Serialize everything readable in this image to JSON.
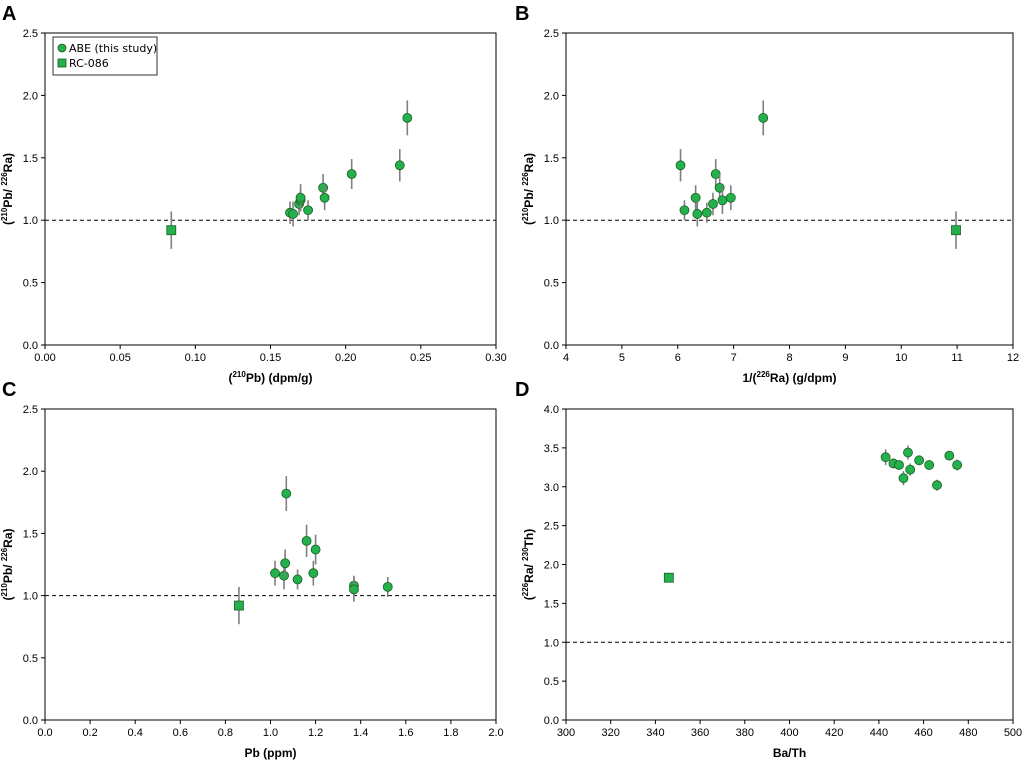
{
  "figure": {
    "legend": {
      "abe_label": "ABE (this study)",
      "rc_label": "RC-086"
    },
    "colors": {
      "marker_fill": "#22b14c",
      "marker_stroke": "#1b5e20",
      "error_bar": "#808080"
    }
  },
  "chart_data": [
    {
      "panel": "A",
      "type": "scatter",
      "xlabel": {
        "pre": "(",
        "sup": "210",
        "post": "Pb) (dpm/g)"
      },
      "ylabel": {
        "pre": "(",
        "sup1": "210",
        "mid": "Pb/ ",
        "sup2": "226",
        "post": "Ra)"
      },
      "xlim": [
        0,
        0.3
      ],
      "ylim": [
        0,
        2.5
      ],
      "xticks": [
        "0.00",
        "0.05",
        "0.10",
        "0.15",
        "0.20",
        "0.25",
        "0.30"
      ],
      "yticks": [
        "0.0",
        "0.5",
        "1.0",
        "1.5",
        "2.0",
        "2.5"
      ],
      "ref_y": 1.0,
      "legend": true,
      "series": [
        {
          "name": "ABE (this study)",
          "marker": "circle",
          "points": [
            {
              "x": 0.163,
              "y": 1.06,
              "err": 0.09
            },
            {
              "x": 0.165,
              "y": 1.05,
              "err": 0.1
            },
            {
              "x": 0.169,
              "y": 1.13,
              "err": 0.09
            },
            {
              "x": 0.17,
              "y": 1.16,
              "err": 0.08
            },
            {
              "x": 0.17,
              "y": 1.18,
              "err": 0.11
            },
            {
              "x": 0.175,
              "y": 1.08,
              "err": 0.08
            },
            {
              "x": 0.185,
              "y": 1.26,
              "err": 0.11
            },
            {
              "x": 0.186,
              "y": 1.18,
              "err": 0.1
            },
            {
              "x": 0.204,
              "y": 1.37,
              "err": 0.12
            },
            {
              "x": 0.236,
              "y": 1.44,
              "err": 0.13
            },
            {
              "x": 0.241,
              "y": 1.82,
              "err": 0.14
            }
          ]
        },
        {
          "name": "RC-086",
          "marker": "square",
          "points": [
            {
              "x": 0.084,
              "y": 0.92,
              "err": 0.15
            }
          ]
        }
      ]
    },
    {
      "panel": "B",
      "type": "scatter",
      "xlabel": {
        "pre": "1/(",
        "sup": "226",
        "post": "Ra) (g/dpm)"
      },
      "ylabel": {
        "pre": "(",
        "sup1": "210",
        "mid": "Pb/ ",
        "sup2": "226",
        "post": "Ra)"
      },
      "xlim": [
        4,
        12
      ],
      "ylim": [
        0,
        2.5
      ],
      "xticks": [
        "4",
        "5",
        "6",
        "7",
        "8",
        "9",
        "10",
        "11",
        "12"
      ],
      "yticks": [
        "0.0",
        "0.5",
        "1.0",
        "1.5",
        "2.0",
        "2.5"
      ],
      "ref_y": 1.0,
      "legend": false,
      "series": [
        {
          "name": "ABE (this study)",
          "marker": "circle",
          "points": [
            {
              "x": 6.05,
              "y": 1.44,
              "err": 0.13
            },
            {
              "x": 6.12,
              "y": 1.08,
              "err": 0.08
            },
            {
              "x": 6.32,
              "y": 1.18,
              "err": 0.1
            },
            {
              "x": 6.35,
              "y": 1.05,
              "err": 0.1
            },
            {
              "x": 6.52,
              "y": 1.06,
              "err": 0.08
            },
            {
              "x": 6.63,
              "y": 1.13,
              "err": 0.09
            },
            {
              "x": 6.68,
              "y": 1.37,
              "err": 0.12
            },
            {
              "x": 6.75,
              "y": 1.26,
              "err": 0.11
            },
            {
              "x": 6.8,
              "y": 1.16,
              "err": 0.11
            },
            {
              "x": 6.95,
              "y": 1.18,
              "err": 0.1
            },
            {
              "x": 7.53,
              "y": 1.82,
              "err": 0.14
            }
          ]
        },
        {
          "name": "RC-086",
          "marker": "square",
          "points": [
            {
              "x": 10.98,
              "y": 0.92,
              "err": 0.15
            }
          ]
        }
      ]
    },
    {
      "panel": "C",
      "type": "scatter",
      "xlabel": {
        "pre": "Pb (ppm)",
        "sup": "",
        "post": ""
      },
      "ylabel": {
        "pre": "(",
        "sup1": "210",
        "mid": "Pb/ ",
        "sup2": "226",
        "post": "Ra)"
      },
      "xlim": [
        0,
        2
      ],
      "ylim": [
        0,
        2.5
      ],
      "xticks": [
        "0.0",
        "0.2",
        "0.4",
        "0.6",
        "0.8",
        "1.0",
        "1.2",
        "1.4",
        "1.6",
        "1.8",
        "2.0"
      ],
      "yticks": [
        "0.0",
        "0.5",
        "1.0",
        "1.5",
        "2.0",
        "2.5"
      ],
      "ref_y": 1.0,
      "legend": false,
      "series": [
        {
          "name": "ABE (this study)",
          "marker": "circle",
          "points": [
            {
              "x": 1.02,
              "y": 1.18,
              "err": 0.1
            },
            {
              "x": 1.06,
              "y": 1.16,
              "err": 0.11
            },
            {
              "x": 1.065,
              "y": 1.26,
              "err": 0.11
            },
            {
              "x": 1.07,
              "y": 1.82,
              "err": 0.14
            },
            {
              "x": 1.12,
              "y": 1.13,
              "err": 0.08
            },
            {
              "x": 1.16,
              "y": 1.44,
              "err": 0.13
            },
            {
              "x": 1.19,
              "y": 1.18,
              "err": 0.1
            },
            {
              "x": 1.2,
              "y": 1.37,
              "err": 0.12
            },
            {
              "x": 1.37,
              "y": 1.08,
              "err": 0.08
            },
            {
              "x": 1.37,
              "y": 1.05,
              "err": 0.1
            },
            {
              "x": 1.52,
              "y": 1.07,
              "err": 0.08
            }
          ]
        },
        {
          "name": "RC-086",
          "marker": "square",
          "points": [
            {
              "x": 0.86,
              "y": 0.92,
              "err": 0.15
            }
          ]
        }
      ]
    },
    {
      "panel": "D",
      "type": "scatter",
      "xlabel": {
        "pre": "Ba/Th",
        "sup": "",
        "post": ""
      },
      "ylabel": {
        "pre": "(",
        "sup1": "226",
        "mid": "Ra/ ",
        "sup2": "230",
        "post": "Th)"
      },
      "xlim": [
        300,
        500
      ],
      "ylim": [
        0,
        4
      ],
      "xticks": [
        "300",
        "320",
        "340",
        "360",
        "380",
        "400",
        "420",
        "440",
        "460",
        "480",
        "500"
      ],
      "yticks": [
        "0.0",
        "0.5",
        "1.0",
        "1.5",
        "2.0",
        "2.5",
        "3.0",
        "3.5",
        "4.0"
      ],
      "ref_y": 1.0,
      "legend": false,
      "series": [
        {
          "name": "ABE (this study)",
          "marker": "circle",
          "points": [
            {
              "x": 443,
              "y": 3.38,
              "err": 0.1
            },
            {
              "x": 446.5,
              "y": 3.3,
              "err": 0.06
            },
            {
              "x": 449,
              "y": 3.28,
              "err": 0.06
            },
            {
              "x": 451,
              "y": 3.11,
              "err": 0.09
            },
            {
              "x": 453,
              "y": 3.44,
              "err": 0.09
            },
            {
              "x": 454,
              "y": 3.22,
              "err": 0.08
            },
            {
              "x": 458,
              "y": 3.34,
              "err": 0.05
            },
            {
              "x": 462.5,
              "y": 3.28,
              "err": 0.06
            },
            {
              "x": 466,
              "y": 3.02,
              "err": 0.07
            },
            {
              "x": 471.5,
              "y": 3.4,
              "err": 0.06
            },
            {
              "x": 475,
              "y": 3.28,
              "err": 0.07
            }
          ]
        },
        {
          "name": "RC-086",
          "marker": "square",
          "points": [
            {
              "x": 346,
              "y": 1.83,
              "err": 0
            }
          ]
        }
      ]
    }
  ]
}
